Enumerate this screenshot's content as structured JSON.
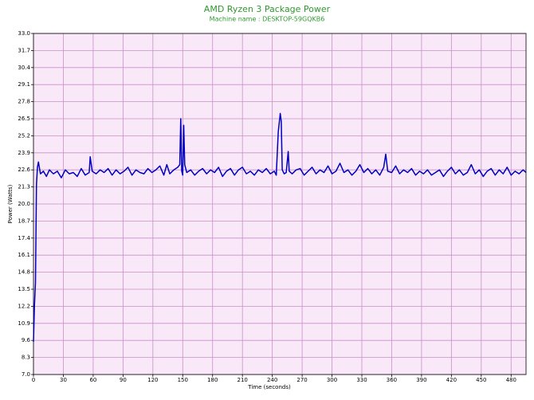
{
  "chart_data": {
    "type": "line",
    "title": "AMD Ryzen 3 Package Power",
    "subtitle": "Machine name : DESKTOP-59GQKB6",
    "x_label": "Time (seconds)",
    "y_label": "Power (Watts)",
    "xlim": [
      0,
      495
    ],
    "xticks": [
      0,
      30,
      60,
      90,
      120,
      150,
      180,
      210,
      240,
      270,
      300,
      330,
      360,
      390,
      420,
      450,
      480
    ],
    "ylim": [
      7,
      33
    ],
    "yticks": [
      {
        "value": 7,
        "label": "7.0"
      },
      8.3,
      9.6,
      10.9,
      12.2,
      13.5,
      14.8,
      16.1,
      17.4,
      18.7,
      {
        "value": 20,
        "label": "20.0"
      },
      21.3,
      22.6,
      23.9,
      25.2,
      26.5,
      27.8,
      29.1,
      30.4,
      31.7,
      {
        "value": 33,
        "label": "33.0"
      }
    ],
    "grid": true,
    "plot_background": "#f8e8f8",
    "grid_color": "#c890c8",
    "title_color": "#2e9a2e",
    "x": [
      0,
      1,
      2,
      3,
      4,
      5,
      7,
      10,
      13,
      16,
      20,
      24,
      28,
      32,
      36,
      40,
      44,
      48,
      52,
      56,
      57,
      59,
      63,
      67,
      71,
      75,
      79,
      83,
      87,
      91,
      95,
      99,
      103,
      107,
      111,
      115,
      119,
      123,
      127,
      131,
      134,
      137,
      141,
      145,
      147,
      148,
      149,
      150,
      151,
      152,
      154,
      158,
      162,
      166,
      170,
      174,
      178,
      182,
      186,
      190,
      194,
      198,
      202,
      206,
      210,
      214,
      218,
      222,
      226,
      230,
      234,
      238,
      242,
      244,
      246,
      248,
      249,
      250,
      252,
      254,
      256,
      257,
      260,
      264,
      268,
      272,
      276,
      280,
      284,
      288,
      292,
      296,
      300,
      304,
      308,
      312,
      316,
      320,
      324,
      328,
      332,
      336,
      340,
      344,
      348,
      352,
      354,
      356,
      360,
      364,
      368,
      372,
      376,
      380,
      384,
      388,
      392,
      396,
      400,
      404,
      408,
      412,
      416,
      420,
      424,
      428,
      432,
      436,
      440,
      444,
      448,
      452,
      456,
      460,
      464,
      468,
      472,
      476,
      480,
      484,
      488,
      492,
      495
    ],
    "series": [
      {
        "name": "Package Power",
        "color": "#0000c0",
        "values": [
          9.5,
          12.3,
          14.0,
          21.5,
          22.8,
          23.2,
          22.3,
          22.5,
          22.1,
          22.6,
          22.3,
          22.5,
          22.0,
          22.6,
          22.3,
          22.4,
          22.1,
          22.7,
          22.2,
          22.4,
          23.6,
          22.5,
          22.3,
          22.6,
          22.4,
          22.7,
          22.2,
          22.6,
          22.3,
          22.5,
          22.8,
          22.2,
          22.6,
          22.4,
          22.3,
          22.7,
          22.4,
          22.6,
          22.9,
          22.2,
          23.0,
          22.3,
          22.6,
          22.8,
          23.0,
          26.5,
          22.5,
          22.2,
          26.0,
          23.0,
          22.4,
          22.6,
          22.2,
          22.5,
          22.7,
          22.3,
          22.6,
          22.4,
          22.8,
          22.1,
          22.5,
          22.7,
          22.2,
          22.6,
          22.8,
          22.3,
          22.5,
          22.2,
          22.6,
          22.4,
          22.7,
          22.3,
          22.5,
          22.2,
          25.5,
          26.9,
          26.3,
          22.6,
          22.3,
          22.4,
          24.0,
          22.5,
          22.3,
          22.6,
          22.7,
          22.2,
          22.5,
          22.8,
          22.3,
          22.6,
          22.4,
          22.9,
          22.3,
          22.5,
          23.1,
          22.4,
          22.6,
          22.2,
          22.5,
          23.0,
          22.4,
          22.7,
          22.3,
          22.6,
          22.2,
          22.8,
          23.8,
          22.5,
          22.4,
          22.9,
          22.3,
          22.6,
          22.4,
          22.7,
          22.2,
          22.5,
          22.3,
          22.6,
          22.2,
          22.4,
          22.6,
          22.1,
          22.5,
          22.8,
          22.3,
          22.6,
          22.2,
          22.4,
          23.0,
          22.3,
          22.6,
          22.1,
          22.5,
          22.7,
          22.2,
          22.6,
          22.3,
          22.8,
          22.2,
          22.5,
          22.3,
          22.6,
          22.4
        ]
      }
    ]
  }
}
